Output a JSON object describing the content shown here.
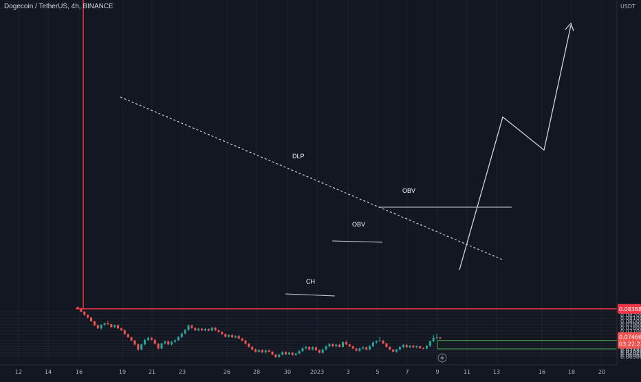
{
  "header": {
    "title": "Dogecoin / TetherUS, 4h, BINANCE"
  },
  "colors": {
    "background": "#131722",
    "up": "#26a69a",
    "down": "#ef5350",
    "resistance": "#f23645",
    "support": "#4caf50",
    "annotation": "#d1d4dc"
  },
  "chart_data": {
    "type": "candlestick",
    "title": "Dogecoin / TetherUS, 4h, BINANCE",
    "currency": "USDT",
    "y_ticks": [
      "0.08300",
      "0.08200",
      "0.08100",
      "0.08000",
      "0.07900",
      "0.07800",
      "0.07700",
      "0.07600",
      "0.07500",
      "0.07400",
      "0.07300",
      "0.07220",
      "0.07140",
      "0.07080",
      "0.07020",
      "0.06960",
      "0.06900"
    ],
    "x_ticks": [
      "12",
      "14",
      "16",
      "19",
      "21",
      "23",
      "26",
      "28",
      "30",
      "2023",
      "3",
      "5",
      "7",
      "9",
      "11",
      "13",
      "16",
      "18",
      "20"
    ],
    "ylim": [
      0.0686,
      0.0845
    ],
    "resistance_level": {
      "value": 0.08388,
      "label": "0.08388"
    },
    "current_price": {
      "value": 0.07466,
      "label": "0.07466",
      "countdown": "03:22:23"
    },
    "support_levels": [
      0.074,
      0.0714
    ],
    "annotations": [
      "DLP",
      "OBV",
      "OBV",
      "CH"
    ],
    "candles": [
      {
        "o": 0.0845,
        "h": 0.0845,
        "l": 0.0838,
        "c": 0.084
      },
      {
        "o": 0.084,
        "h": 0.0842,
        "l": 0.0829,
        "c": 0.083
      },
      {
        "o": 0.083,
        "h": 0.0832,
        "l": 0.0818,
        "c": 0.082
      },
      {
        "o": 0.082,
        "h": 0.0822,
        "l": 0.0809,
        "c": 0.0812
      },
      {
        "o": 0.0812,
        "h": 0.0814,
        "l": 0.0799,
        "c": 0.08
      },
      {
        "o": 0.08,
        "h": 0.0802,
        "l": 0.0785,
        "c": 0.0788
      },
      {
        "o": 0.0788,
        "h": 0.079,
        "l": 0.0776,
        "c": 0.0778
      },
      {
        "o": 0.0778,
        "h": 0.0791,
        "l": 0.0774,
        "c": 0.0789
      },
      {
        "o": 0.0789,
        "h": 0.0796,
        "l": 0.0785,
        "c": 0.0794
      },
      {
        "o": 0.0794,
        "h": 0.0802,
        "l": 0.0788,
        "c": 0.0791
      },
      {
        "o": 0.0791,
        "h": 0.0792,
        "l": 0.078,
        "c": 0.0782
      },
      {
        "o": 0.0782,
        "h": 0.079,
        "l": 0.0779,
        "c": 0.0788
      },
      {
        "o": 0.0788,
        "h": 0.079,
        "l": 0.0776,
        "c": 0.0778
      },
      {
        "o": 0.0778,
        "h": 0.0781,
        "l": 0.077,
        "c": 0.0772
      },
      {
        "o": 0.0772,
        "h": 0.0775,
        "l": 0.0758,
        "c": 0.076
      },
      {
        "o": 0.076,
        "h": 0.0762,
        "l": 0.0749,
        "c": 0.075
      },
      {
        "o": 0.075,
        "h": 0.0752,
        "l": 0.0739,
        "c": 0.074
      },
      {
        "o": 0.074,
        "h": 0.0742,
        "l": 0.0725,
        "c": 0.0728
      },
      {
        "o": 0.0728,
        "h": 0.0731,
        "l": 0.0708,
        "c": 0.0712
      },
      {
        "o": 0.0712,
        "h": 0.0731,
        "l": 0.071,
        "c": 0.0728
      },
      {
        "o": 0.0728,
        "h": 0.0745,
        "l": 0.0725,
        "c": 0.0742
      },
      {
        "o": 0.0742,
        "h": 0.0752,
        "l": 0.0738,
        "c": 0.0748
      },
      {
        "o": 0.0748,
        "h": 0.0751,
        "l": 0.074,
        "c": 0.0742
      },
      {
        "o": 0.0742,
        "h": 0.0744,
        "l": 0.0728,
        "c": 0.073
      },
      {
        "o": 0.073,
        "h": 0.0733,
        "l": 0.0712,
        "c": 0.0715
      },
      {
        "o": 0.0715,
        "h": 0.0733,
        "l": 0.0713,
        "c": 0.0731
      },
      {
        "o": 0.0731,
        "h": 0.074,
        "l": 0.0727,
        "c": 0.0737
      },
      {
        "o": 0.0737,
        "h": 0.0739,
        "l": 0.0726,
        "c": 0.0728
      },
      {
        "o": 0.0728,
        "h": 0.0739,
        "l": 0.0725,
        "c": 0.0736
      },
      {
        "o": 0.0736,
        "h": 0.0744,
        "l": 0.0733,
        "c": 0.0741
      },
      {
        "o": 0.0741,
        "h": 0.0754,
        "l": 0.0739,
        "c": 0.0751
      },
      {
        "o": 0.0751,
        "h": 0.0765,
        "l": 0.0748,
        "c": 0.0762
      },
      {
        "o": 0.0762,
        "h": 0.0776,
        "l": 0.0759,
        "c": 0.0773
      },
      {
        "o": 0.0773,
        "h": 0.079,
        "l": 0.077,
        "c": 0.0787
      },
      {
        "o": 0.0787,
        "h": 0.079,
        "l": 0.0777,
        "c": 0.0779
      },
      {
        "o": 0.0779,
        "h": 0.0781,
        "l": 0.077,
        "c": 0.0772
      },
      {
        "o": 0.0772,
        "h": 0.078,
        "l": 0.0769,
        "c": 0.0777
      },
      {
        "o": 0.0777,
        "h": 0.0779,
        "l": 0.077,
        "c": 0.0772
      },
      {
        "o": 0.0772,
        "h": 0.0779,
        "l": 0.0769,
        "c": 0.0776
      },
      {
        "o": 0.0776,
        "h": 0.0778,
        "l": 0.0769,
        "c": 0.0771
      },
      {
        "o": 0.0771,
        "h": 0.0783,
        "l": 0.0769,
        "c": 0.078
      },
      {
        "o": 0.078,
        "h": 0.0783,
        "l": 0.077,
        "c": 0.0772
      },
      {
        "o": 0.0772,
        "h": 0.0774,
        "l": 0.0765,
        "c": 0.0767
      },
      {
        "o": 0.0767,
        "h": 0.0769,
        "l": 0.0758,
        "c": 0.076
      },
      {
        "o": 0.076,
        "h": 0.0762,
        "l": 0.075,
        "c": 0.0752
      },
      {
        "o": 0.0752,
        "h": 0.076,
        "l": 0.0749,
        "c": 0.0757
      },
      {
        "o": 0.0757,
        "h": 0.076,
        "l": 0.0748,
        "c": 0.075
      },
      {
        "o": 0.075,
        "h": 0.0756,
        "l": 0.0746,
        "c": 0.0754
      },
      {
        "o": 0.0754,
        "h": 0.0757,
        "l": 0.0744,
        "c": 0.0746
      },
      {
        "o": 0.0746,
        "h": 0.0749,
        "l": 0.0738,
        "c": 0.074
      },
      {
        "o": 0.074,
        "h": 0.0742,
        "l": 0.0728,
        "c": 0.073
      },
      {
        "o": 0.073,
        "h": 0.0732,
        "l": 0.0718,
        "c": 0.072
      },
      {
        "o": 0.072,
        "h": 0.0723,
        "l": 0.071,
        "c": 0.0712
      },
      {
        "o": 0.0712,
        "h": 0.0715,
        "l": 0.0702,
        "c": 0.0705
      },
      {
        "o": 0.0705,
        "h": 0.0713,
        "l": 0.0702,
        "c": 0.071
      },
      {
        "o": 0.071,
        "h": 0.0712,
        "l": 0.0701,
        "c": 0.0703
      },
      {
        "o": 0.0703,
        "h": 0.0712,
        "l": 0.07,
        "c": 0.0709
      },
      {
        "o": 0.0709,
        "h": 0.0712,
        "l": 0.0703,
        "c": 0.0705
      },
      {
        "o": 0.0705,
        "h": 0.0707,
        "l": 0.0694,
        "c": 0.0696
      },
      {
        "o": 0.0696,
        "h": 0.0698,
        "l": 0.0686,
        "c": 0.0688
      },
      {
        "o": 0.0688,
        "h": 0.0698,
        "l": 0.0686,
        "c": 0.0696
      },
      {
        "o": 0.0696,
        "h": 0.0707,
        "l": 0.0693,
        "c": 0.0704
      },
      {
        "o": 0.0704,
        "h": 0.0706,
        "l": 0.0695,
        "c": 0.0697
      },
      {
        "o": 0.0697,
        "h": 0.0705,
        "l": 0.0694,
        "c": 0.0702
      },
      {
        "o": 0.0702,
        "h": 0.0704,
        "l": 0.0693,
        "c": 0.0695
      },
      {
        "o": 0.0695,
        "h": 0.0702,
        "l": 0.0692,
        "c": 0.0699
      },
      {
        "o": 0.0699,
        "h": 0.071,
        "l": 0.0697,
        "c": 0.0707
      },
      {
        "o": 0.0707,
        "h": 0.0719,
        "l": 0.0704,
        "c": 0.0716
      },
      {
        "o": 0.0716,
        "h": 0.0723,
        "l": 0.0712,
        "c": 0.072
      },
      {
        "o": 0.072,
        "h": 0.0722,
        "l": 0.071,
        "c": 0.0712
      },
      {
        "o": 0.0712,
        "h": 0.0722,
        "l": 0.071,
        "c": 0.0719
      },
      {
        "o": 0.0719,
        "h": 0.0721,
        "l": 0.0708,
        "c": 0.071
      },
      {
        "o": 0.071,
        "h": 0.0712,
        "l": 0.07,
        "c": 0.0702
      },
      {
        "o": 0.0702,
        "h": 0.0715,
        "l": 0.0699,
        "c": 0.0712
      },
      {
        "o": 0.0712,
        "h": 0.0725,
        "l": 0.0709,
        "c": 0.0722
      },
      {
        "o": 0.0722,
        "h": 0.0732,
        "l": 0.0718,
        "c": 0.0729
      },
      {
        "o": 0.0729,
        "h": 0.0731,
        "l": 0.0719,
        "c": 0.0722
      },
      {
        "o": 0.0722,
        "h": 0.073,
        "l": 0.0719,
        "c": 0.0727
      },
      {
        "o": 0.0727,
        "h": 0.0729,
        "l": 0.0718,
        "c": 0.072
      },
      {
        "o": 0.072,
        "h": 0.0738,
        "l": 0.0718,
        "c": 0.0735
      },
      {
        "o": 0.0735,
        "h": 0.074,
        "l": 0.0726,
        "c": 0.0728
      },
      {
        "o": 0.0728,
        "h": 0.073,
        "l": 0.0719,
        "c": 0.0722
      },
      {
        "o": 0.0722,
        "h": 0.0724,
        "l": 0.0713,
        "c": 0.0715
      },
      {
        "o": 0.0715,
        "h": 0.0717,
        "l": 0.0706,
        "c": 0.0708
      },
      {
        "o": 0.0708,
        "h": 0.0718,
        "l": 0.0705,
        "c": 0.0715
      },
      {
        "o": 0.0715,
        "h": 0.0722,
        "l": 0.0712,
        "c": 0.0719
      },
      {
        "o": 0.0719,
        "h": 0.0721,
        "l": 0.071,
        "c": 0.0712
      },
      {
        "o": 0.0712,
        "h": 0.0725,
        "l": 0.071,
        "c": 0.0722
      },
      {
        "o": 0.0722,
        "h": 0.0737,
        "l": 0.0719,
        "c": 0.0734
      },
      {
        "o": 0.0734,
        "h": 0.0741,
        "l": 0.073,
        "c": 0.0738
      },
      {
        "o": 0.0738,
        "h": 0.0752,
        "l": 0.0736,
        "c": 0.074
      },
      {
        "o": 0.074,
        "h": 0.0742,
        "l": 0.0729,
        "c": 0.0731
      },
      {
        "o": 0.0731,
        "h": 0.0733,
        "l": 0.0718,
        "c": 0.072
      },
      {
        "o": 0.072,
        "h": 0.0722,
        "l": 0.071,
        "c": 0.0712
      },
      {
        "o": 0.0712,
        "h": 0.0714,
        "l": 0.0703,
        "c": 0.0705
      },
      {
        "o": 0.0705,
        "h": 0.0714,
        "l": 0.0702,
        "c": 0.0712
      },
      {
        "o": 0.0712,
        "h": 0.0723,
        "l": 0.0709,
        "c": 0.072
      },
      {
        "o": 0.072,
        "h": 0.0729,
        "l": 0.0716,
        "c": 0.0726
      },
      {
        "o": 0.0726,
        "h": 0.0728,
        "l": 0.0717,
        "c": 0.0719
      },
      {
        "o": 0.0719,
        "h": 0.0726,
        "l": 0.0716,
        "c": 0.0724
      },
      {
        "o": 0.0724,
        "h": 0.0726,
        "l": 0.0717,
        "c": 0.0719
      },
      {
        "o": 0.0719,
        "h": 0.0725,
        "l": 0.0716,
        "c": 0.0722
      },
      {
        "o": 0.0722,
        "h": 0.0724,
        "l": 0.0714,
        "c": 0.0716
      },
      {
        "o": 0.0716,
        "h": 0.0719,
        "l": 0.0713,
        "c": 0.0715
      },
      {
        "o": 0.0715,
        "h": 0.0726,
        "l": 0.0713,
        "c": 0.0723
      },
      {
        "o": 0.0723,
        "h": 0.074,
        "l": 0.072,
        "c": 0.0738
      },
      {
        "o": 0.0738,
        "h": 0.0758,
        "l": 0.0735,
        "c": 0.0748
      },
      {
        "o": 0.0748,
        "h": 0.0762,
        "l": 0.0743,
        "c": 0.075
      },
      {
        "o": 0.075,
        "h": 0.0751,
        "l": 0.0745,
        "c": 0.07466
      }
    ]
  }
}
